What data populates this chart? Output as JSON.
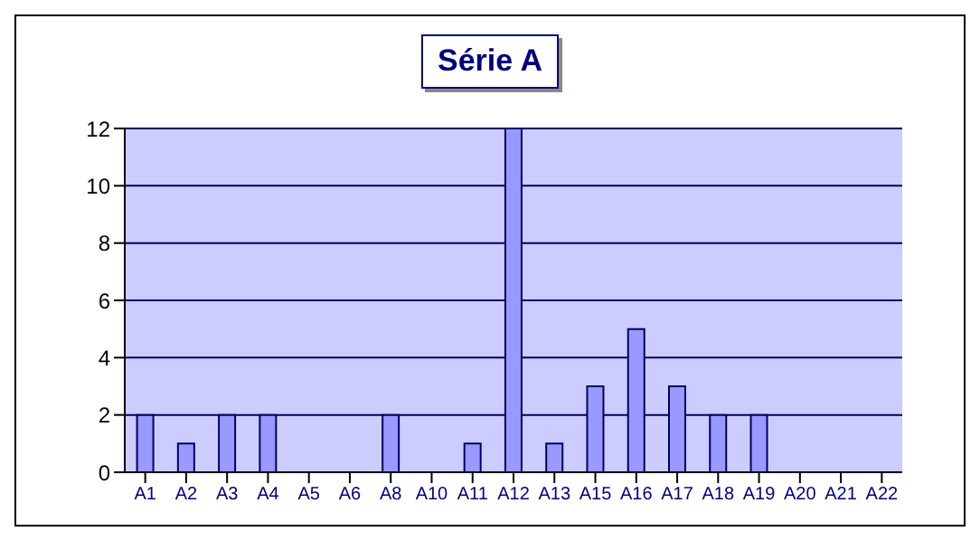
{
  "chart_data": {
    "type": "bar",
    "title": "Série A",
    "categories": [
      "A1",
      "A2",
      "A3",
      "A4",
      "A5",
      "A6",
      "A8",
      "A10",
      "A11",
      "A12",
      "A13",
      "A15",
      "A16",
      "A17",
      "A18",
      "A19",
      "A20",
      "A21",
      "A22"
    ],
    "values": [
      2,
      1,
      2,
      2,
      0,
      0,
      2,
      0,
      1,
      12,
      1,
      3,
      5,
      3,
      2,
      2,
      0,
      0,
      0
    ],
    "color": "#9999ff",
    "ylim": [
      0,
      12
    ],
    "yticks": [
      0,
      2,
      4,
      6,
      8,
      10,
      12
    ],
    "grid": "y"
  }
}
